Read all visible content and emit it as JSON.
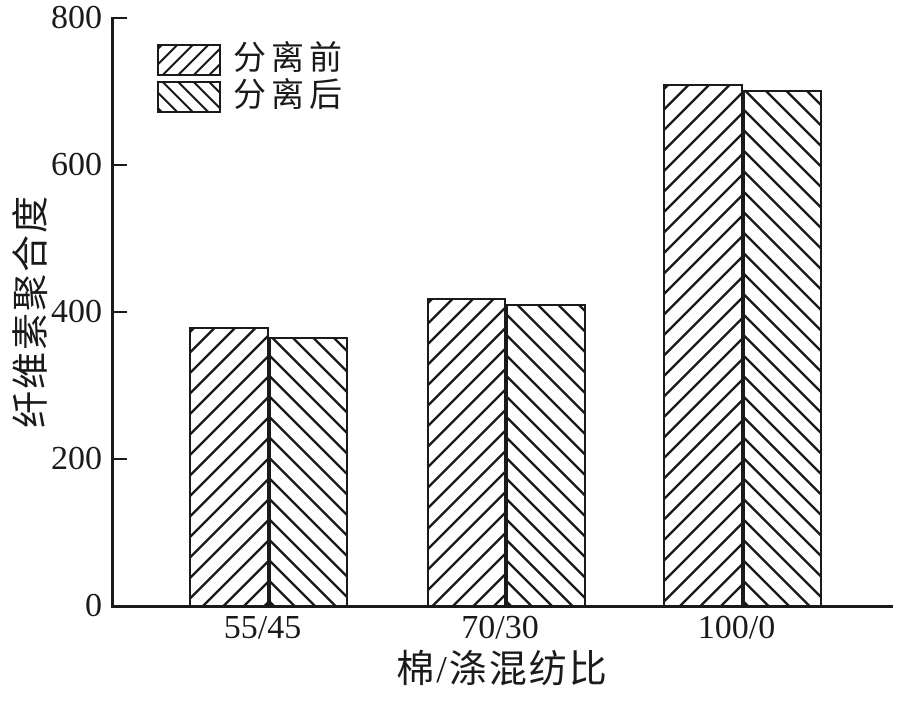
{
  "chart_data": {
    "type": "bar",
    "title": "",
    "categories": [
      "55/45",
      "70/30",
      "100/0"
    ],
    "series": [
      {
        "name": "分离前",
        "hatch": "backslash",
        "values": [
          380,
          419,
          710
        ]
      },
      {
        "name": "分离后",
        "hatch": "slash",
        "values": [
          366,
          411,
          702
        ]
      }
    ],
    "xlabel": "棉/涤混纺比",
    "ylabel": "纤维素聚合度",
    "ylim": [
      0,
      800
    ],
    "yticks": [
      0,
      200,
      400,
      600,
      800
    ],
    "grid": false,
    "legend_position": "top-left",
    "line_color": "#1a1a1a",
    "background_color": "#ffffff"
  }
}
